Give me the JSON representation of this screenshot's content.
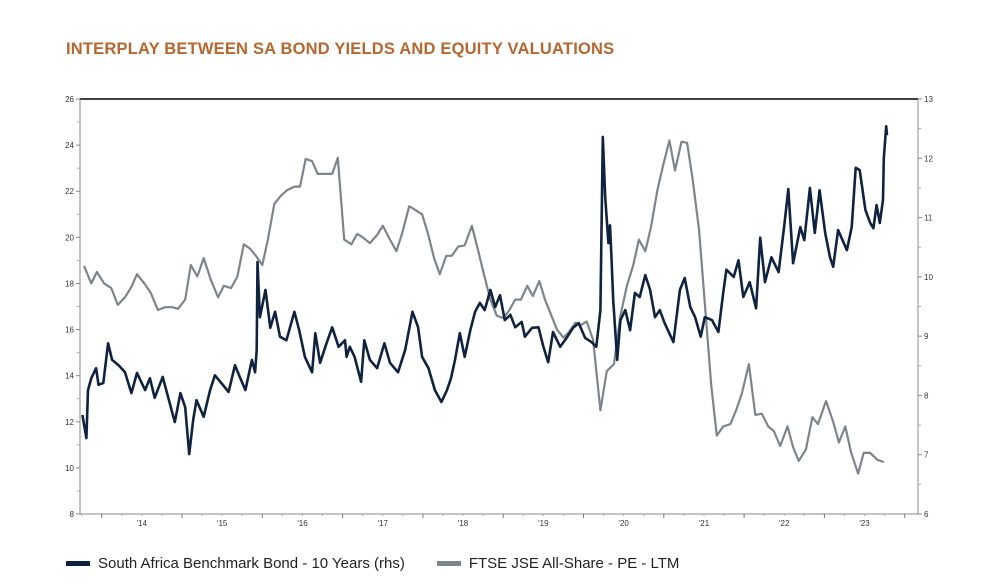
{
  "chart_data": {
    "type": "line",
    "title": "INTERPLAY BETWEEN SA BOND YIELDS AND EQUITY VALUATIONS",
    "xlabel": "",
    "x_unit": "decimal year",
    "x_tick_labels": [
      "'14",
      "'15",
      "'16",
      "'17",
      "'18",
      "'19",
      "'20",
      "'21",
      "'22",
      "'23"
    ],
    "xlim": [
      2013.73,
      2024.2
    ],
    "y_left": {
      "lim": [
        8,
        26
      ],
      "ticks": [
        "8",
        "10",
        "12",
        "14",
        "16",
        "18",
        "20",
        "22",
        "24",
        "26"
      ]
    },
    "y_right": {
      "lim": [
        6,
        13
      ],
      "ticks": [
        "6",
        "7",
        "8",
        "9",
        "10",
        "11",
        "12",
        "13"
      ]
    },
    "grid": false,
    "legend_position": "bottom",
    "series": [
      {
        "name": "South Africa Benchmark Bond - 10 Years (rhs)",
        "axis": "right",
        "color": "#0f2340",
        "points": [
          [
            2013.76,
            7.67
          ],
          [
            2013.81,
            7.28
          ],
          [
            2013.83,
            8.09
          ],
          [
            2013.87,
            8.29
          ],
          [
            2013.93,
            8.46
          ],
          [
            2013.96,
            8.18
          ],
          [
            2014.02,
            8.21
          ],
          [
            2014.08,
            8.88
          ],
          [
            2014.13,
            8.6
          ],
          [
            2014.21,
            8.51
          ],
          [
            2014.29,
            8.39
          ],
          [
            2014.37,
            8.04
          ],
          [
            2014.44,
            8.38
          ],
          [
            2014.54,
            8.09
          ],
          [
            2014.6,
            8.29
          ],
          [
            2014.66,
            7.96
          ],
          [
            2014.76,
            8.31
          ],
          [
            2014.83,
            7.96
          ],
          [
            2014.91,
            7.55
          ],
          [
            2014.98,
            8.04
          ],
          [
            2015.04,
            7.8
          ],
          [
            2015.09,
            7.01
          ],
          [
            2015.14,
            7.59
          ],
          [
            2015.18,
            7.92
          ],
          [
            2015.27,
            7.64
          ],
          [
            2015.35,
            8.09
          ],
          [
            2015.41,
            8.34
          ],
          [
            2015.49,
            8.21
          ],
          [
            2015.58,
            8.06
          ],
          [
            2015.66,
            8.51
          ],
          [
            2015.72,
            8.31
          ],
          [
            2015.79,
            8.09
          ],
          [
            2015.87,
            8.6
          ],
          [
            2015.91,
            8.39
          ],
          [
            2015.93,
            8.77
          ],
          [
            2015.94,
            10.25
          ],
          [
            2015.97,
            9.32
          ],
          [
            2016.04,
            9.78
          ],
          [
            2016.1,
            9.14
          ],
          [
            2016.16,
            9.41
          ],
          [
            2016.22,
            8.99
          ],
          [
            2016.3,
            8.93
          ],
          [
            2016.4,
            9.41
          ],
          [
            2016.46,
            9.1
          ],
          [
            2016.53,
            8.65
          ],
          [
            2016.62,
            8.39
          ],
          [
            2016.66,
            9.05
          ],
          [
            2016.72,
            8.55
          ],
          [
            2016.8,
            8.88
          ],
          [
            2016.87,
            9.15
          ],
          [
            2016.95,
            8.82
          ],
          [
            2017.03,
            8.93
          ],
          [
            2017.05,
            8.65
          ],
          [
            2017.09,
            8.82
          ],
          [
            2017.15,
            8.65
          ],
          [
            2017.23,
            8.23
          ],
          [
            2017.27,
            8.93
          ],
          [
            2017.34,
            8.6
          ],
          [
            2017.43,
            8.46
          ],
          [
            2017.52,
            8.88
          ],
          [
            2017.59,
            8.55
          ],
          [
            2017.69,
            8.39
          ],
          [
            2017.78,
            8.77
          ],
          [
            2017.87,
            9.41
          ],
          [
            2017.94,
            9.15
          ],
          [
            2017.99,
            8.65
          ],
          [
            2018.07,
            8.46
          ],
          [
            2018.15,
            8.09
          ],
          [
            2018.23,
            7.89
          ],
          [
            2018.3,
            8.09
          ],
          [
            2018.35,
            8.29
          ],
          [
            2018.4,
            8.6
          ],
          [
            2018.46,
            9.05
          ],
          [
            2018.52,
            8.65
          ],
          [
            2018.59,
            9.1
          ],
          [
            2018.65,
            9.41
          ],
          [
            2018.71,
            9.56
          ],
          [
            2018.77,
            9.44
          ],
          [
            2018.84,
            9.78
          ],
          [
            2018.9,
            9.49
          ],
          [
            2018.96,
            9.69
          ],
          [
            2019.02,
            9.27
          ],
          [
            2019.09,
            9.36
          ],
          [
            2019.15,
            9.15
          ],
          [
            2019.23,
            9.24
          ],
          [
            2019.27,
            8.99
          ],
          [
            2019.36,
            9.14
          ],
          [
            2019.44,
            9.15
          ],
          [
            2019.5,
            8.82
          ],
          [
            2019.56,
            8.56
          ],
          [
            2019.62,
            9.07
          ],
          [
            2019.71,
            8.82
          ],
          [
            2019.79,
            8.97
          ],
          [
            2019.87,
            9.14
          ],
          [
            2019.94,
            9.22
          ],
          [
            2020.02,
            8.97
          ],
          [
            2020.1,
            8.9
          ],
          [
            2020.16,
            8.82
          ],
          [
            2020.21,
            9.44
          ],
          [
            2020.24,
            12.36
          ],
          [
            2020.27,
            11.35
          ],
          [
            2020.31,
            10.57
          ],
          [
            2020.33,
            10.87
          ],
          [
            2020.35,
            10.28
          ],
          [
            2020.37,
            9.61
          ],
          [
            2020.42,
            8.6
          ],
          [
            2020.46,
            9.27
          ],
          [
            2020.52,
            9.44
          ],
          [
            2020.58,
            9.1
          ],
          [
            2020.64,
            9.73
          ],
          [
            2020.7,
            9.66
          ],
          [
            2020.77,
            10.03
          ],
          [
            2020.83,
            9.78
          ],
          [
            2020.89,
            9.32
          ],
          [
            2020.95,
            9.44
          ],
          [
            2021.01,
            9.22
          ],
          [
            2021.12,
            8.9
          ],
          [
            2021.2,
            9.78
          ],
          [
            2021.26,
            9.98
          ],
          [
            2021.33,
            9.49
          ],
          [
            2021.39,
            9.32
          ],
          [
            2021.46,
            8.99
          ],
          [
            2021.51,
            9.32
          ],
          [
            2021.6,
            9.27
          ],
          [
            2021.68,
            9.07
          ],
          [
            2021.74,
            9.73
          ],
          [
            2021.78,
            10.12
          ],
          [
            2021.87,
            10.0
          ],
          [
            2021.93,
            10.28
          ],
          [
            2021.99,
            9.66
          ],
          [
            2022.07,
            9.91
          ],
          [
            2022.15,
            9.47
          ],
          [
            2022.2,
            10.66
          ],
          [
            2022.26,
            9.91
          ],
          [
            2022.34,
            10.33
          ],
          [
            2022.43,
            10.08
          ],
          [
            2022.5,
            10.87
          ],
          [
            2022.55,
            11.48
          ],
          [
            2022.61,
            10.23
          ],
          [
            2022.7,
            10.84
          ],
          [
            2022.75,
            10.62
          ],
          [
            2022.82,
            11.5
          ],
          [
            2022.88,
            10.74
          ],
          [
            2022.94,
            11.46
          ],
          [
            2023.01,
            10.74
          ],
          [
            2023.07,
            10.33
          ],
          [
            2023.11,
            10.17
          ],
          [
            2023.17,
            10.79
          ],
          [
            2023.28,
            10.45
          ],
          [
            2023.34,
            10.84
          ],
          [
            2023.39,
            11.84
          ],
          [
            2023.44,
            11.8
          ],
          [
            2023.51,
            11.13
          ],
          [
            2023.57,
            10.91
          ],
          [
            2023.61,
            10.82
          ],
          [
            2023.65,
            11.21
          ],
          [
            2023.69,
            10.91
          ],
          [
            2023.73,
            11.3
          ],
          [
            2023.74,
            12.0
          ],
          [
            2023.77,
            12.54
          ],
          [
            2023.78,
            12.39
          ]
        ]
      },
      {
        "name": "FTSE JSE All-Share - PE - LTM",
        "axis": "left",
        "color": "#7d858c",
        "points": [
          [
            2013.78,
            18.76
          ],
          [
            2013.87,
            18.0
          ],
          [
            2013.94,
            18.5
          ],
          [
            2014.03,
            18.0
          ],
          [
            2014.12,
            17.8
          ],
          [
            2014.2,
            17.07
          ],
          [
            2014.29,
            17.4
          ],
          [
            2014.37,
            17.85
          ],
          [
            2014.44,
            18.4
          ],
          [
            2014.53,
            18.0
          ],
          [
            2014.61,
            17.6
          ],
          [
            2014.7,
            16.85
          ],
          [
            2014.79,
            16.97
          ],
          [
            2014.88,
            16.97
          ],
          [
            2014.95,
            16.9
          ],
          [
            2015.04,
            17.3
          ],
          [
            2015.11,
            18.8
          ],
          [
            2015.19,
            18.3
          ],
          [
            2015.27,
            19.1
          ],
          [
            2015.36,
            18.15
          ],
          [
            2015.45,
            17.4
          ],
          [
            2015.52,
            17.9
          ],
          [
            2015.61,
            17.8
          ],
          [
            2015.69,
            18.3
          ],
          [
            2015.77,
            19.7
          ],
          [
            2015.85,
            19.5
          ],
          [
            2015.92,
            19.2
          ],
          [
            2016.0,
            18.8
          ],
          [
            2016.07,
            19.9
          ],
          [
            2016.15,
            21.45
          ],
          [
            2016.23,
            21.8
          ],
          [
            2016.31,
            22.05
          ],
          [
            2016.4,
            22.2
          ],
          [
            2016.47,
            22.2
          ],
          [
            2016.54,
            23.4
          ],
          [
            2016.62,
            23.3
          ],
          [
            2016.69,
            22.75
          ],
          [
            2016.78,
            22.75
          ],
          [
            2016.87,
            22.75
          ],
          [
            2016.94,
            23.45
          ],
          [
            2017.02,
            19.9
          ],
          [
            2017.11,
            19.7
          ],
          [
            2017.18,
            20.15
          ],
          [
            2017.25,
            20.0
          ],
          [
            2017.34,
            19.75
          ],
          [
            2017.43,
            20.1
          ],
          [
            2017.5,
            20.5
          ],
          [
            2017.59,
            19.9
          ],
          [
            2017.67,
            19.4
          ],
          [
            2017.74,
            20.15
          ],
          [
            2017.83,
            21.35
          ],
          [
            2017.9,
            21.2
          ],
          [
            2017.99,
            21.0
          ],
          [
            2018.06,
            20.2
          ],
          [
            2018.14,
            19.1
          ],
          [
            2018.21,
            18.4
          ],
          [
            2018.29,
            19.2
          ],
          [
            2018.36,
            19.2
          ],
          [
            2018.44,
            19.6
          ],
          [
            2018.52,
            19.65
          ],
          [
            2018.61,
            20.5
          ],
          [
            2018.69,
            19.4
          ],
          [
            2018.76,
            18.4
          ],
          [
            2018.84,
            17.3
          ],
          [
            2018.92,
            16.6
          ],
          [
            2019.0,
            16.5
          ],
          [
            2019.07,
            16.8
          ],
          [
            2019.15,
            17.3
          ],
          [
            2019.22,
            17.3
          ],
          [
            2019.3,
            17.9
          ],
          [
            2019.37,
            17.45
          ],
          [
            2019.45,
            18.1
          ],
          [
            2019.52,
            17.3
          ],
          [
            2019.6,
            16.6
          ],
          [
            2019.67,
            16.0
          ],
          [
            2019.75,
            15.65
          ],
          [
            2019.82,
            15.9
          ],
          [
            2019.9,
            16.3
          ],
          [
            2019.97,
            16.2
          ],
          [
            2020.04,
            16.35
          ],
          [
            2020.12,
            15.55
          ],
          [
            2020.21,
            12.5
          ],
          [
            2020.29,
            14.2
          ],
          [
            2020.38,
            14.5
          ],
          [
            2020.46,
            16.6
          ],
          [
            2020.54,
            17.9
          ],
          [
            2020.62,
            18.8
          ],
          [
            2020.69,
            19.9
          ],
          [
            2020.77,
            19.4
          ],
          [
            2020.84,
            20.45
          ],
          [
            2020.92,
            22.05
          ],
          [
            2020.99,
            23.1
          ],
          [
            2021.07,
            24.2
          ],
          [
            2021.14,
            22.9
          ],
          [
            2021.22,
            24.15
          ],
          [
            2021.29,
            24.1
          ],
          [
            2021.36,
            22.5
          ],
          [
            2021.44,
            20.3
          ],
          [
            2021.51,
            17.15
          ],
          [
            2021.59,
            13.6
          ],
          [
            2021.66,
            11.4
          ],
          [
            2021.74,
            11.8
          ],
          [
            2021.83,
            11.9
          ],
          [
            2021.9,
            12.5
          ],
          [
            2021.97,
            13.2
          ],
          [
            2022.06,
            14.5
          ],
          [
            2022.14,
            12.3
          ],
          [
            2022.22,
            12.35
          ],
          [
            2022.3,
            11.8
          ],
          [
            2022.37,
            11.6
          ],
          [
            2022.45,
            10.95
          ],
          [
            2022.54,
            11.8
          ],
          [
            2022.61,
            10.9
          ],
          [
            2022.68,
            10.3
          ],
          [
            2022.77,
            10.8
          ],
          [
            2022.85,
            12.2
          ],
          [
            2022.92,
            11.9
          ],
          [
            2023.02,
            12.9
          ],
          [
            2023.11,
            12.0
          ],
          [
            2023.18,
            11.1
          ],
          [
            2023.26,
            11.8
          ],
          [
            2023.33,
            10.7
          ],
          [
            2023.42,
            9.75
          ],
          [
            2023.49,
            10.65
          ],
          [
            2023.57,
            10.65
          ],
          [
            2023.66,
            10.35
          ],
          [
            2023.74,
            10.25
          ]
        ]
      }
    ]
  }
}
